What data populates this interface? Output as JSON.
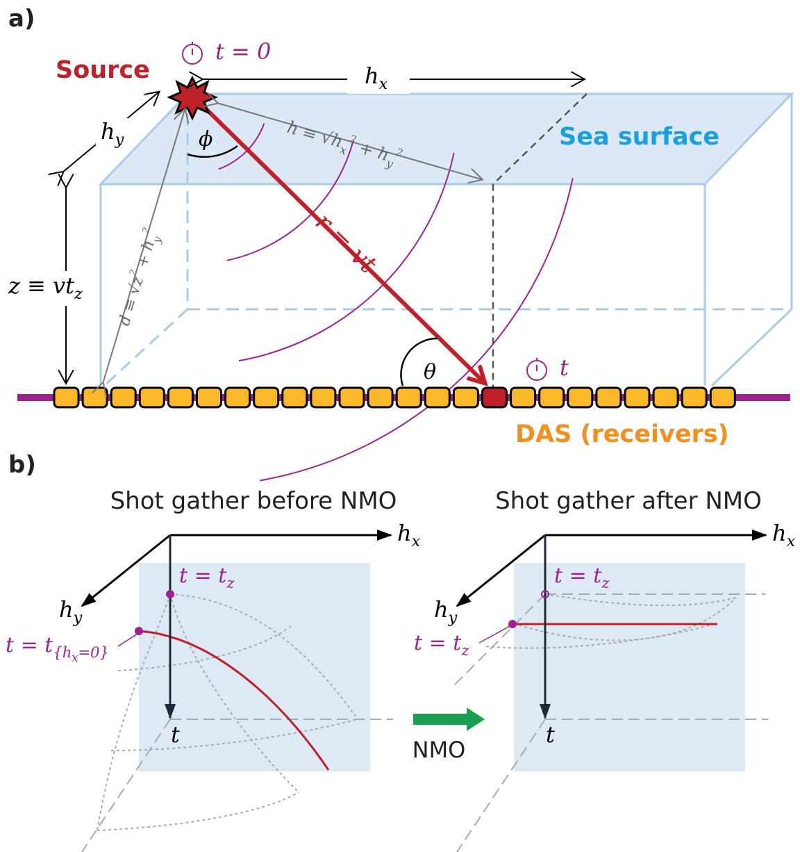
{
  "panel_a": {
    "label": "a)",
    "source": "Source",
    "source_time": [
      {
        "text": "t = 0"
      }
    ],
    "hx": [
      {
        "text": "h"
      },
      {
        "text": "x",
        "style": "sub"
      }
    ],
    "hy": [
      {
        "text": "h"
      },
      {
        "text": "y",
        "style": "sub"
      }
    ],
    "sea_surface": "Sea surface",
    "offset": [
      {
        "text": "h ≡ √"
      },
      {
        "text": "h"
      },
      {
        "text": "x",
        "style": "sub"
      },
      {
        "text": "2",
        "style": "sup"
      },
      {
        "text": " + h"
      },
      {
        "text": "y",
        "style": "sub"
      },
      {
        "text": "2",
        "style": "sup"
      }
    ],
    "phi": [
      {
        "text": "ϕ"
      }
    ],
    "ray": [
      {
        "text": "r = vt"
      }
    ],
    "depth": [
      {
        "text": "z ≡ vt"
      },
      {
        "text": "z",
        "style": "sub"
      }
    ],
    "distance": [
      {
        "text": "d ≡ √"
      },
      {
        "text": "z"
      },
      {
        "text": "2",
        "style": "sup"
      },
      {
        "text": " + h"
      },
      {
        "text": "y",
        "style": "sub"
      },
      {
        "text": "2",
        "style": "sup"
      }
    ],
    "theta": [
      {
        "text": "θ"
      }
    ],
    "receiver_time": [
      {
        "text": "t"
      }
    ],
    "das": "DAS (receivers)"
  },
  "panel_b": {
    "label": "b)",
    "nmo": "NMO",
    "before": {
      "title": "Shot gather before NMO",
      "hx": [
        {
          "text": "h"
        },
        {
          "text": "x",
          "style": "sub"
        }
      ],
      "hy": [
        {
          "text": "h"
        },
        {
          "text": "y",
          "style": "sub"
        }
      ],
      "apex": [
        {
          "text": "t = t"
        },
        {
          "text": "z",
          "style": "sub"
        }
      ],
      "zero_offset": [
        {
          "text": "t = t"
        },
        {
          "text": "{h",
          "style": "sub"
        },
        {
          "text": "x",
          "style": "sub2"
        },
        {
          "text": "=0}",
          "style": "sub"
        }
      ],
      "t": [
        {
          "text": "t"
        }
      ]
    },
    "after": {
      "title": "Shot gather after NMO",
      "hx": [
        {
          "text": "h"
        },
        {
          "text": "x",
          "style": "sub"
        }
      ],
      "hy": [
        {
          "text": "h"
        },
        {
          "text": "y",
          "style": "sub"
        }
      ],
      "apex": [
        {
          "text": "t = t"
        },
        {
          "text": "z",
          "style": "sub"
        }
      ],
      "flat": [
        {
          "text": "t = t"
        },
        {
          "text": "z",
          "style": "sub"
        }
      ],
      "t": [
        {
          "text": "t"
        }
      ]
    }
  }
}
